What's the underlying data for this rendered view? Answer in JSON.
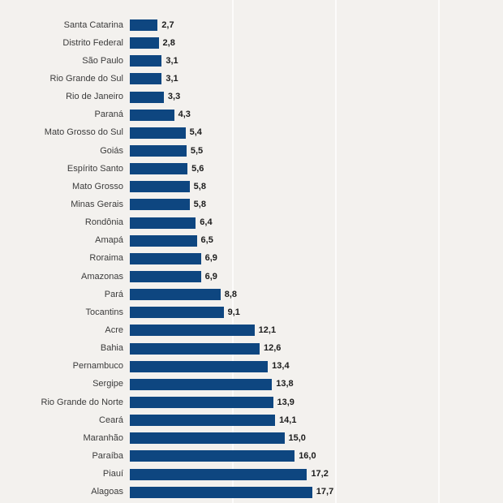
{
  "chart_data": {
    "type": "bar",
    "orientation": "horizontal",
    "title": "",
    "xlabel": "",
    "ylabel": "",
    "xlim": [
      0,
      36
    ],
    "gridlines_at": [
      10,
      20,
      30
    ],
    "grid": true,
    "legend": "none",
    "decimal_separator": ",",
    "categories": [
      "Santa Catarina",
      "Distrito Federal",
      "São Paulo",
      "Rio Grande do Sul",
      "Rio de Janeiro",
      "Paraná",
      "Mato Grosso do Sul",
      "Goiás",
      "Espírito Santo",
      "Mato Grosso",
      "Minas Gerais",
      "Rondônia",
      "Amapá",
      "Roraima",
      "Amazonas",
      "Pará",
      "Tocantins",
      "Acre",
      "Bahia",
      "Pernambuco",
      "Sergipe",
      "Rio Grande do Norte",
      "Ceará",
      "Maranhão",
      "Paraíba",
      "Piauí",
      "Alagoas"
    ],
    "values": [
      2.7,
      2.8,
      3.1,
      3.1,
      3.3,
      4.3,
      5.4,
      5.5,
      5.6,
      5.8,
      5.8,
      6.4,
      6.5,
      6.9,
      6.9,
      8.8,
      9.1,
      12.1,
      12.6,
      13.4,
      13.8,
      13.9,
      14.1,
      15.0,
      16.0,
      17.2,
      17.7
    ],
    "value_labels": [
      "2,7",
      "2,8",
      "3,1",
      "3,1",
      "3,3",
      "4,3",
      "5,4",
      "5,5",
      "5,6",
      "5,8",
      "5,8",
      "6,4",
      "6,5",
      "6,9",
      "6,9",
      "8,8",
      "9,1",
      "12,1",
      "12,6",
      "13,4",
      "13,8",
      "13,9",
      "14,1",
      "15,0",
      "16,0",
      "17,2",
      "17,7"
    ]
  },
  "colors": {
    "background": "#f3f1ee",
    "bar": "#0e4680",
    "gridline": "#fcfbfa",
    "category_label": "#3b3b3b",
    "value_label": "#1c1c1c"
  }
}
